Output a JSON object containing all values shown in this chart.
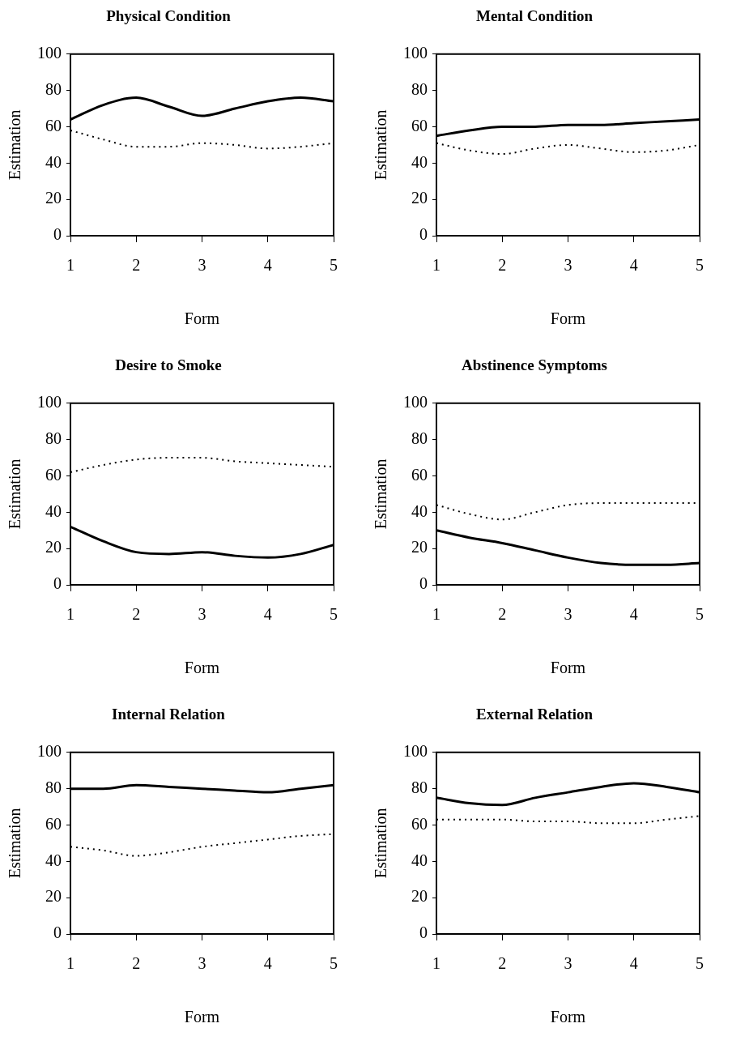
{
  "chart_data": [
    {
      "type": "line",
      "title": "Physical Condition",
      "xlabel": "Form",
      "ylabel": "Estimation",
      "xlim": [
        1,
        5
      ],
      "xticks": [
        1,
        2,
        3,
        4,
        5
      ],
      "ylim": [
        0,
        100
      ],
      "yticks": [
        0,
        20,
        40,
        60,
        80,
        100
      ],
      "marker": "none",
      "x": [
        1,
        1.5,
        2,
        2.5,
        3,
        3.5,
        4,
        4.5,
        5
      ],
      "series": [
        {
          "color": "#000000",
          "line_style": "solid",
          "values": [
            64,
            72,
            76,
            71,
            66,
            70,
            74,
            76,
            74
          ]
        },
        {
          "color": "#000000",
          "line_style": "dotted",
          "values": [
            58,
            53,
            49,
            49,
            51,
            50,
            48,
            49,
            51
          ]
        }
      ]
    },
    {
      "type": "line",
      "title": "Mental Condition",
      "xlabel": "Form",
      "ylabel": "Estimation",
      "xlim": [
        1,
        5
      ],
      "xticks": [
        1,
        2,
        3,
        4,
        5
      ],
      "ylim": [
        0,
        100
      ],
      "yticks": [
        0,
        20,
        40,
        60,
        80,
        100
      ],
      "marker": "none",
      "x": [
        1,
        1.5,
        2,
        2.5,
        3,
        3.5,
        4,
        4.5,
        5
      ],
      "series": [
        {
          "color": "#000000",
          "line_style": "solid",
          "values": [
            55,
            58,
            60,
            60,
            61,
            61,
            62,
            63,
            64
          ]
        },
        {
          "color": "#000000",
          "line_style": "dotted",
          "values": [
            51,
            47,
            45,
            48,
            50,
            48,
            46,
            47,
            50
          ]
        }
      ]
    },
    {
      "type": "line",
      "title": "Desire to Smoke",
      "xlabel": "Form",
      "ylabel": "Estimation",
      "xlim": [
        1,
        5
      ],
      "xticks": [
        1,
        2,
        3,
        4,
        5
      ],
      "ylim": [
        0,
        100
      ],
      "yticks": [
        0,
        20,
        40,
        60,
        80,
        100
      ],
      "marker": "none",
      "x": [
        1,
        1.5,
        2,
        2.5,
        3,
        3.5,
        4,
        4.5,
        5
      ],
      "series": [
        {
          "color": "#000000",
          "line_style": "solid",
          "values": [
            32,
            24,
            18,
            17,
            18,
            16,
            15,
            17,
            22
          ]
        },
        {
          "color": "#000000",
          "line_style": "dotted",
          "values": [
            62,
            66,
            69,
            70,
            70,
            68,
            67,
            66,
            65
          ]
        }
      ]
    },
    {
      "type": "line",
      "title": "Abstinence Symptoms",
      "xlabel": "Form",
      "ylabel": "Estimation",
      "xlim": [
        1,
        5
      ],
      "xticks": [
        1,
        2,
        3,
        4,
        5
      ],
      "ylim": [
        0,
        100
      ],
      "yticks": [
        0,
        20,
        40,
        60,
        80,
        100
      ],
      "marker": "none",
      "x": [
        1,
        1.5,
        2,
        2.5,
        3,
        3.5,
        4,
        4.5,
        5
      ],
      "series": [
        {
          "color": "#000000",
          "line_style": "solid",
          "values": [
            30,
            26,
            23,
            19,
            15,
            12,
            11,
            11,
            12
          ]
        },
        {
          "color": "#000000",
          "line_style": "dotted",
          "values": [
            44,
            39,
            36,
            40,
            44,
            45,
            45,
            45,
            45
          ]
        }
      ]
    },
    {
      "type": "line",
      "title": "Internal Relation",
      "xlabel": "Form",
      "ylabel": "Estimation",
      "xlim": [
        1,
        5
      ],
      "xticks": [
        1,
        2,
        3,
        4,
        5
      ],
      "ylim": [
        0,
        100
      ],
      "yticks": [
        0,
        20,
        40,
        60,
        80,
        100
      ],
      "marker": "none",
      "x": [
        1,
        1.5,
        2,
        2.5,
        3,
        3.5,
        4,
        4.5,
        5
      ],
      "series": [
        {
          "color": "#000000",
          "line_style": "solid",
          "values": [
            80,
            80,
            82,
            81,
            80,
            79,
            78,
            80,
            82
          ]
        },
        {
          "color": "#000000",
          "line_style": "dotted",
          "values": [
            48,
            46,
            43,
            45,
            48,
            50,
            52,
            54,
            55
          ]
        }
      ]
    },
    {
      "type": "line",
      "title": "External Relation",
      "xlabel": "Form",
      "ylabel": "Estimation",
      "xlim": [
        1,
        5
      ],
      "xticks": [
        1,
        2,
        3,
        4,
        5
      ],
      "ylim": [
        0,
        100
      ],
      "yticks": [
        0,
        20,
        40,
        60,
        80,
        100
      ],
      "marker": "none",
      "x": [
        1,
        1.5,
        2,
        2.5,
        3,
        3.5,
        4,
        4.5,
        5
      ],
      "series": [
        {
          "color": "#000000",
          "line_style": "solid",
          "values": [
            75,
            72,
            71,
            75,
            78,
            81,
            83,
            81,
            78
          ]
        },
        {
          "color": "#000000",
          "line_style": "dotted",
          "values": [
            63,
            63,
            63,
            62,
            62,
            61,
            61,
            63,
            65
          ]
        }
      ]
    }
  ]
}
